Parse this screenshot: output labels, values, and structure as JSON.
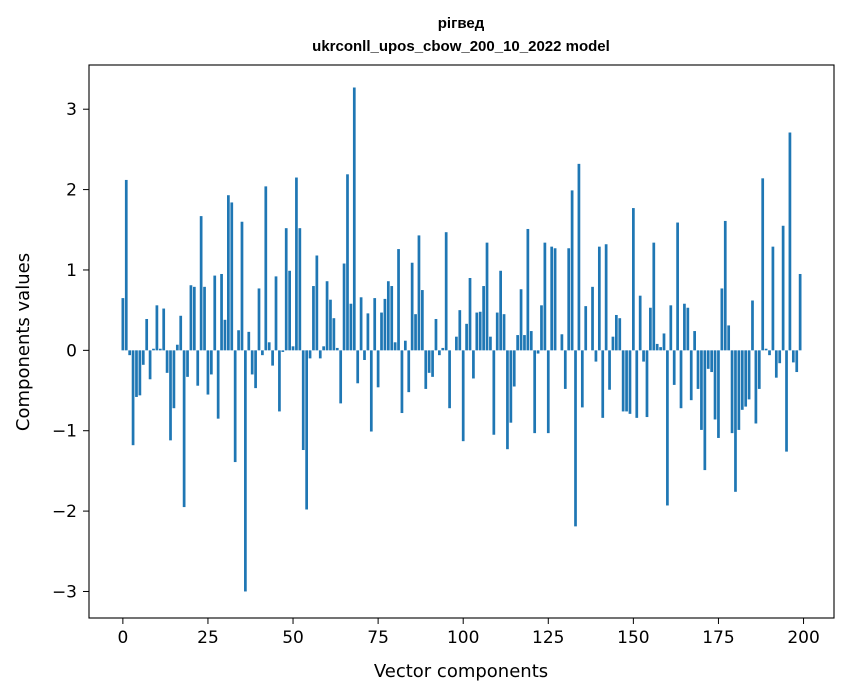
{
  "chart_data": {
    "type": "bar",
    "title_line1": "рігвед",
    "title_line2": "ukrconll_upos_cbow_200_10_2022 model",
    "xlabel": "Vector components",
    "ylabel": "Components values",
    "xlim": [
      -9.95,
      208.95
    ],
    "ylim": [
      -3.33,
      3.55
    ],
    "xticks": [
      0,
      25,
      50,
      75,
      100,
      125,
      150,
      175,
      200
    ],
    "yticks": [
      -3,
      -2,
      -1,
      0,
      1,
      2,
      3
    ],
    "xtick_labels": [
      "0",
      "25",
      "50",
      "75",
      "100",
      "125",
      "150",
      "175",
      "200"
    ],
    "ytick_labels": [
      "−3",
      "−2",
      "−1",
      "0",
      "1",
      "2",
      "3"
    ],
    "bar_color": "#1f77b4",
    "grid": false,
    "x_start": 0,
    "values": [
      0.65,
      2.12,
      -0.06,
      -1.18,
      -0.58,
      -0.56,
      -0.18,
      0.39,
      -0.36,
      0.02,
      0.56,
      0.02,
      0.52,
      -0.28,
      -1.12,
      -0.72,
      0.07,
      0.43,
      -1.95,
      -0.33,
      0.81,
      0.79,
      -0.44,
      1.67,
      0.79,
      -0.55,
      -0.3,
      0.93,
      -0.85,
      0.95,
      0.38,
      1.93,
      1.84,
      -1.39,
      0.25,
      1.6,
      -3.0,
      0.23,
      -0.3,
      -0.47,
      0.77,
      -0.06,
      2.04,
      0.1,
      -0.19,
      0.92,
      -0.76,
      -0.02,
      1.52,
      0.99,
      0.05,
      2.15,
      1.52,
      -1.24,
      -1.98,
      -0.1,
      0.8,
      1.18,
      -0.1,
      0.05,
      0.86,
      0.63,
      0.4,
      0.03,
      -0.66,
      1.08,
      2.19,
      0.58,
      3.27,
      -0.41,
      0.66,
      -0.12,
      0.46,
      -1.01,
      0.65,
      -0.46,
      0.47,
      0.64,
      0.86,
      0.8,
      0.1,
      1.26,
      -0.78,
      0.12,
      -0.52,
      1.09,
      0.45,
      1.43,
      0.75,
      -0.48,
      -0.28,
      -0.33,
      0.39,
      -0.06,
      0.03,
      1.47,
      -0.72,
      0.0,
      0.17,
      0.5,
      -1.13,
      0.33,
      0.9,
      -0.35,
      0.47,
      0.48,
      0.8,
      1.34,
      0.17,
      -1.05,
      0.47,
      0.99,
      0.45,
      -1.23,
      -0.9,
      -0.45,
      0.19,
      0.76,
      0.19,
      1.51,
      0.24,
      -1.03,
      -0.04,
      0.56,
      1.34,
      -1.03,
      1.29,
      1.27,
      0.0,
      0.2,
      -0.48,
      1.27,
      1.99,
      -2.19,
      2.32,
      -0.71,
      0.55,
      0.0,
      0.79,
      -0.14,
      1.29,
      -0.84,
      1.32,
      -0.49,
      0.17,
      0.44,
      0.4,
      -0.76,
      -0.76,
      -0.79,
      1.77,
      -0.84,
      0.68,
      -0.14,
      -0.83,
      0.53,
      1.34,
      0.08,
      0.04,
      0.21,
      -1.93,
      0.56,
      -0.43,
      1.59,
      -0.72,
      0.58,
      0.53,
      -0.62,
      0.24,
      -0.48,
      -0.99,
      -1.49,
      -0.23,
      -0.27,
      -0.86,
      -1.09,
      0.77,
      1.61,
      0.31,
      -1.03,
      -1.76,
      -0.99,
      -0.74,
      -0.7,
      -0.61,
      0.62,
      -0.91,
      -0.48,
      2.14,
      0.02,
      -0.06,
      1.29,
      -0.34,
      -0.16,
      1.55,
      -1.26,
      2.71,
      -0.15,
      -0.27,
      0.95
    ]
  }
}
